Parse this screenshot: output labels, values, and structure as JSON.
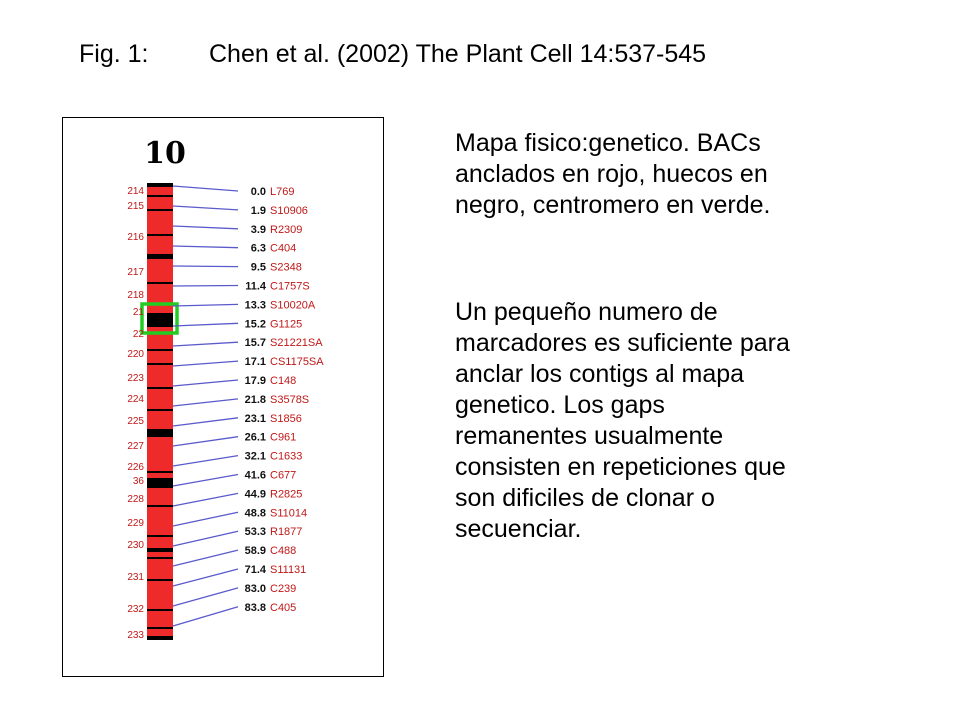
{
  "caption": {
    "label": "Fig. 1:",
    "citation": "Chen et al. (2002) The Plant Cell 14:537-545"
  },
  "figure": {
    "chromosome_number": "10",
    "colors": {
      "anchored_bac": "#ee2a2a",
      "gap": "#000000",
      "centromere": "#22cc22",
      "connector": "#5a5acc",
      "marker_label": "#c01818",
      "bin_label": "#c01818"
    },
    "bins": [
      "214",
      "215",
      "216",
      "217",
      "218",
      "21",
      "22",
      "220",
      "223",
      "224",
      "225",
      "227",
      "226",
      "36",
      "228",
      "229",
      "230",
      "231",
      "232",
      "233"
    ],
    "markers": [
      {
        "cm": "0.0",
        "name": "L769"
      },
      {
        "cm": "1.9",
        "name": "S10906"
      },
      {
        "cm": "3.9",
        "name": "R2309"
      },
      {
        "cm": "6.3",
        "name": "C404"
      },
      {
        "cm": "9.5",
        "name": "S2348"
      },
      {
        "cm": "11.4",
        "name": "C1757S"
      },
      {
        "cm": "13.3",
        "name": "S10020A"
      },
      {
        "cm": "15.2",
        "name": "G1125"
      },
      {
        "cm": "15.7",
        "name": "S21221SA"
      },
      {
        "cm": "17.1",
        "name": "CS1175SA"
      },
      {
        "cm": "17.9",
        "name": "C148"
      },
      {
        "cm": "21.8",
        "name": "S3578S"
      },
      {
        "cm": "23.1",
        "name": "S1856"
      },
      {
        "cm": "26.1",
        "name": "C961"
      },
      {
        "cm": "32.1",
        "name": "C1633"
      },
      {
        "cm": "41.6",
        "name": "C677"
      },
      {
        "cm": "44.9",
        "name": "R2825"
      },
      {
        "cm": "48.8",
        "name": "S11014"
      },
      {
        "cm": "53.3",
        "name": "R1877"
      },
      {
        "cm": "58.9",
        "name": "C488"
      },
      {
        "cm": "71.4",
        "name": "S11131"
      },
      {
        "cm": "83.0",
        "name": "C239"
      },
      {
        "cm": "83.8",
        "name": "C405"
      }
    ]
  },
  "text": {
    "paragraph1": [
      "Mapa fisico:genetico. BACs",
      "anclados en rojo, huecos en",
      "negro, centromero en verde."
    ],
    "paragraph2": [
      "Un pequeño numero de",
      "marcadores es suficiente para",
      "anclar los contigs al mapa",
      "genetico.  Los gaps",
      "remanentes usualmente",
      "consisten en repeticiones que",
      "son dificiles de clonar o",
      "secuenciar."
    ]
  }
}
